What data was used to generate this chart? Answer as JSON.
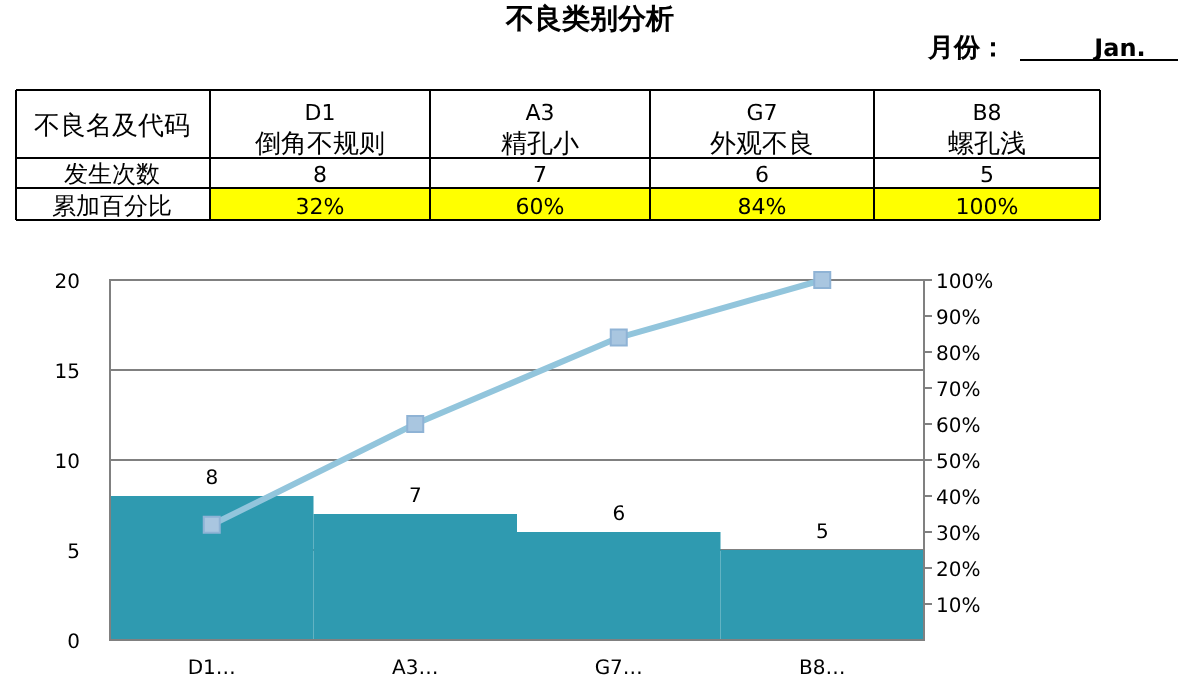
{
  "chart_data": {
    "type": "bar",
    "title": "不良类别分析",
    "annotations": [
      "月份：",
      "Jan.",
      "不良名及代码",
      "D1 倒角不规则",
      "A3 精孔小",
      "G7 外观不良",
      "B8 螺孔浅",
      "发生次数",
      "累加百分比",
      "32%",
      "60%",
      "84%",
      "100%"
    ],
    "categories": [
      "D1…",
      "A3…",
      "G7…",
      "B8…"
    ],
    "series": [
      {
        "color": "#2f9ab0",
        "values": [
          8,
          7,
          6,
          5
        ],
        "value_labels": [
          "8",
          "7",
          "6",
          "5"
        ]
      },
      {
        "type": "line",
        "axis": "y2",
        "color": "#92c5dc",
        "marker": "square",
        "values": [
          32,
          60,
          84,
          100
        ]
      }
    ],
    "ylim": [
      0,
      20
    ],
    "yticks": [
      0,
      5,
      10,
      15,
      20
    ],
    "y2lim": [
      0,
      100
    ],
    "y2ticks": [
      {
        "value": 10,
        "label": "10%"
      },
      {
        "value": 20,
        "label": "20%"
      },
      {
        "value": 30,
        "label": "30%"
      },
      {
        "value": 40,
        "label": "40%"
      },
      {
        "value": 50,
        "label": "50%"
      },
      {
        "value": 60,
        "label": "60%"
      },
      {
        "value": 70,
        "label": "70%"
      },
      {
        "value": 80,
        "label": "80%"
      },
      {
        "value": 90,
        "label": "90%"
      },
      {
        "value": 100,
        "label": "100%"
      }
    ],
    "grid": "y"
  }
}
